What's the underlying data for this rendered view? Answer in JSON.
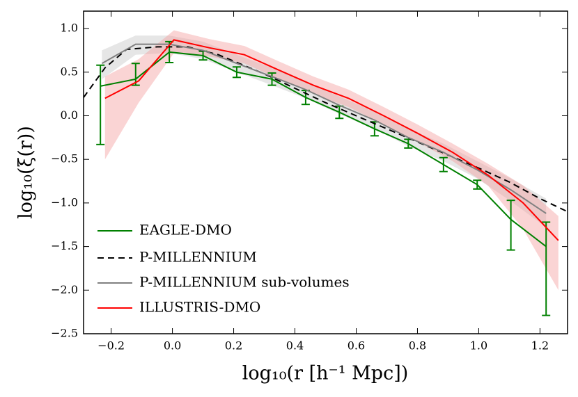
{
  "chart_data": {
    "type": "line",
    "xlabel": "log₁₀(r [h⁻¹ Mpc])",
    "ylabel": "log₁₀(ξ(r))",
    "xlim": [
      -0.29,
      1.29
    ],
    "ylim": [
      -2.5,
      1.2
    ],
    "xticks": [
      {
        "value": -0.2,
        "label": "−0.2"
      },
      {
        "value": 0.0,
        "label": "0.0"
      },
      {
        "value": 0.2,
        "label": "0.2"
      },
      {
        "value": 0.4,
        "label": "0.4"
      },
      {
        "value": 0.6,
        "label": "0.6"
      },
      {
        "value": 0.8,
        "label": "0.8"
      },
      {
        "value": 1.0,
        "label": "1.0"
      },
      {
        "value": 1.2,
        "label": "1.2"
      }
    ],
    "yticks": [
      {
        "value": -2.5,
        "label": "−2.5"
      },
      {
        "value": -2.0,
        "label": "−2.0"
      },
      {
        "value": -1.5,
        "label": "−1.5"
      },
      {
        "value": -1.0,
        "label": "−1.0"
      },
      {
        "value": -0.5,
        "label": "−0.5"
      },
      {
        "value": 0.0,
        "label": "0.0"
      },
      {
        "value": 0.5,
        "label": "0.5"
      },
      {
        "value": 1.0,
        "label": "1.0"
      }
    ],
    "legend": "lower left",
    "series": [
      {
        "name": "EAGLE-DMO",
        "color": "#008000",
        "x": [
          -0.235,
          -0.12,
          -0.01,
          0.1,
          0.21,
          0.325,
          0.435,
          0.545,
          0.66,
          0.77,
          0.885,
          0.995,
          1.105,
          1.22
        ],
        "values": [
          0.34,
          0.42,
          0.73,
          0.69,
          0.5,
          0.42,
          0.21,
          0.04,
          -0.15,
          -0.32,
          -0.56,
          -0.79,
          -1.19,
          -1.5
        ],
        "error_low": [
          0.67,
          0.07,
          0.12,
          0.05,
          0.06,
          0.07,
          0.08,
          0.07,
          0.08,
          0.05,
          0.08,
          0.05,
          0.35,
          0.79
        ],
        "error_high": [
          0.24,
          0.18,
          0.12,
          0.05,
          0.06,
          0.07,
          0.08,
          0.07,
          0.08,
          0.05,
          0.08,
          0.05,
          0.22,
          0.28
        ]
      },
      {
        "name": "P-MILLENNIUM",
        "color": "#000000",
        "dashed": true,
        "x": [
          -0.29,
          -0.22,
          -0.15,
          -0.05,
          0.05,
          0.15,
          0.3,
          0.5,
          0.7,
          0.9,
          1.0,
          1.1,
          1.2,
          1.29
        ],
        "values": [
          0.21,
          0.55,
          0.76,
          0.79,
          0.79,
          0.7,
          0.48,
          0.15,
          -0.15,
          -0.45,
          -0.6,
          -0.76,
          -0.95,
          -1.1
        ]
      },
      {
        "name": "P-MILLENNIUM sub-volumes",
        "color": "#808080",
        "x": [
          -0.23,
          -0.12,
          -0.01,
          0.1,
          0.21,
          0.325,
          0.435,
          0.545,
          0.66,
          0.77,
          0.885,
          0.995,
          1.105,
          1.22
        ],
        "values": [
          0.6,
          0.82,
          0.82,
          0.75,
          0.6,
          0.45,
          0.3,
          0.12,
          -0.05,
          -0.25,
          -0.42,
          -0.62,
          -0.85,
          -1.12
        ],
        "upper": [
          0.75,
          0.92,
          0.92,
          0.85,
          0.7,
          0.55,
          0.4,
          0.22,
          0.05,
          -0.15,
          -0.32,
          -0.52,
          -0.72,
          -0.95
        ],
        "lower": [
          0.42,
          0.7,
          0.72,
          0.65,
          0.5,
          0.35,
          0.2,
          0.02,
          -0.15,
          -0.35,
          -0.52,
          -0.72,
          -0.98,
          -1.28
        ],
        "band_color": "#c8c8c8"
      },
      {
        "name": "ILLUSTRIS-DMO",
        "color": "#ff0000",
        "x": [
          -0.22,
          -0.11,
          0.005,
          0.12,
          0.235,
          0.35,
          0.46,
          0.575,
          0.69,
          0.8,
          0.915,
          1.03,
          1.145,
          1.26
        ],
        "values": [
          0.2,
          0.4,
          0.87,
          0.78,
          0.7,
          0.52,
          0.35,
          0.2,
          0.0,
          -0.2,
          -0.42,
          -0.68,
          -1.0,
          -1.43
        ],
        "upper": [
          0.45,
          0.65,
          0.98,
          0.88,
          0.8,
          0.62,
          0.45,
          0.3,
          0.1,
          -0.1,
          -0.32,
          -0.55,
          -0.8,
          -1.15
        ],
        "lower": [
          -0.5,
          0.15,
          0.72,
          0.68,
          0.6,
          0.42,
          0.25,
          0.1,
          -0.1,
          -0.3,
          -0.52,
          -0.8,
          -1.3,
          -2.0
        ],
        "band_color": "#f4a0a0"
      }
    ]
  }
}
